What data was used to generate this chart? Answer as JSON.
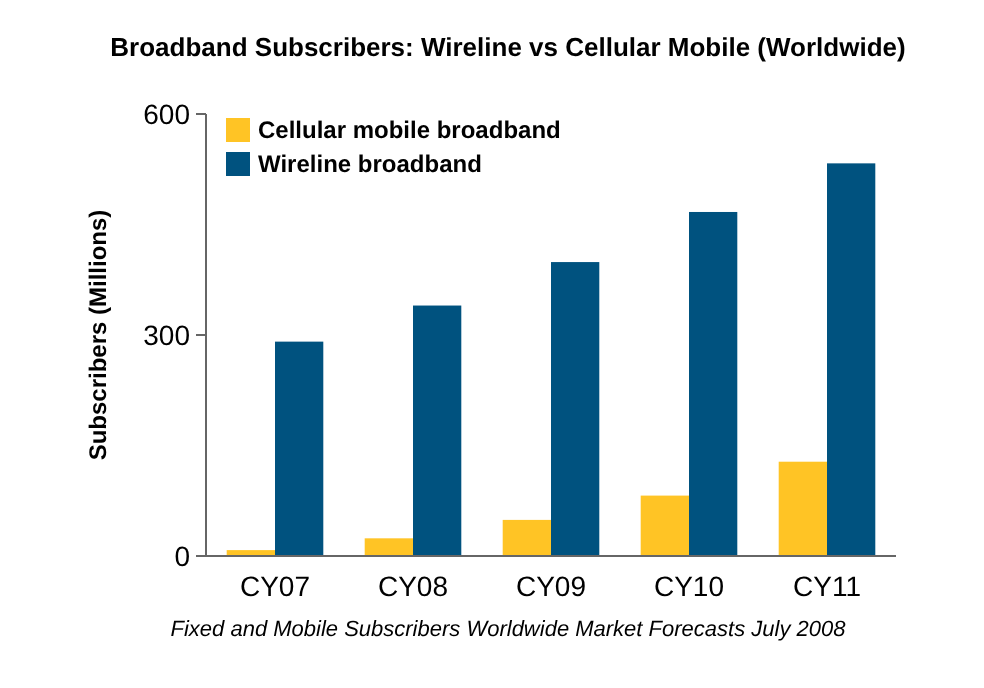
{
  "chart_data": {
    "type": "bar",
    "title": "Broadband Subscribers: Wireline vs Cellular Mobile (Worldwide)",
    "ylabel": "Subscribers (Millions)",
    "categories": [
      "CY07",
      "CY08",
      "CY09",
      "CY10",
      "CY11"
    ],
    "series": [
      {
        "name": "Cellular mobile broadband",
        "color": "#ffc425",
        "values": [
          8,
          24,
          49,
          82,
          128
        ]
      },
      {
        "name": "Wireline broadband",
        "color": "#00527f",
        "values": [
          291,
          340,
          399,
          467,
          533
        ]
      }
    ],
    "ylim": [
      0,
      600
    ],
    "yticks": [
      0,
      300,
      600
    ],
    "legend": "top left",
    "grid": false,
    "annotations": [
      "Fixed and Mobile Subscribers Worldwide Market Forecasts July 2008"
    ]
  }
}
